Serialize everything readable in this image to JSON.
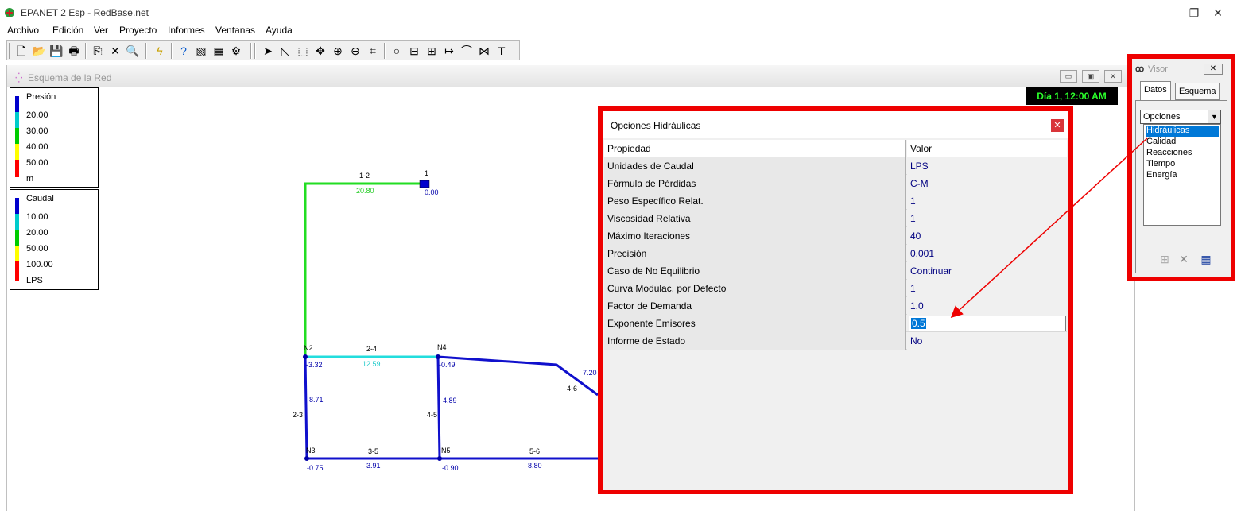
{
  "app": {
    "title": "EPANET 2 Esp - RedBase.net",
    "window_controls": {
      "minimize": "—",
      "restore": "❐",
      "close": "✕"
    }
  },
  "menu": [
    "Archivo",
    "Edición",
    "Ver",
    "Proyecto",
    "Informes",
    "Ventanas",
    "Ayuda"
  ],
  "toolbar": {
    "icons": [
      "new-file-icon",
      "open-folder-icon",
      "save-icon",
      "print-icon",
      "copy-icon",
      "delete-icon",
      "find-icon",
      "run-icon",
      "query-icon",
      "graph-icon",
      "table-icon",
      "options-icon",
      "select-arrow-icon",
      "select-vertex-icon",
      "select-region-icon",
      "pan-icon",
      "zoom-in-icon",
      "zoom-out-icon",
      "full-extent-icon",
      "add-junction-icon",
      "add-reservoir-icon",
      "add-tank-icon",
      "add-pipe-icon",
      "add-pump-icon",
      "add-valve-icon",
      "add-label-icon"
    ],
    "glyphs": [
      "🗋",
      "📂",
      "💾",
      "🖶",
      "⎘",
      "✕",
      "🔍",
      "ϟ",
      "?",
      "▧",
      "▦",
      "⚙",
      "➤",
      "◺",
      "⬚",
      "✥",
      "⊕",
      "⊖",
      "⌗",
      "○",
      "⊟",
      "⊞",
      "↦",
      "⌒",
      "⋈",
      "T"
    ]
  },
  "map_window": {
    "title": "Esquema de la Red",
    "icon": "⁛",
    "controls": {
      "minimize": "▭",
      "maximize": "▣",
      "close": "✕"
    },
    "time_display": "Día 1, 12:00 AM"
  },
  "legend_pressure": {
    "title": "Presión",
    "labels": [
      "20.00",
      "30.00",
      "40.00",
      "50.00",
      "m"
    ],
    "colors": [
      "#0000cc",
      "#00cccc",
      "#00cc00",
      "#ffff00",
      "#ff0000"
    ]
  },
  "legend_flow": {
    "title": "Caudal",
    "labels": [
      "10.00",
      "20.00",
      "50.00",
      "100.00",
      "LPS"
    ],
    "colors": [
      "#0000cc",
      "#00cccc",
      "#00cc00",
      "#ffff00",
      "#ff0000"
    ]
  },
  "network": {
    "nodes": {
      "n1": {
        "id": "1",
        "value": "0.00"
      },
      "n2": {
        "id": "N2",
        "value": "-3.32"
      },
      "n4": {
        "id": "N4",
        "value": "-0.49"
      },
      "n3": {
        "id": "N3",
        "value": "-0.75"
      },
      "n5": {
        "id": "N5",
        "value": "-0.90"
      }
    },
    "links": {
      "l12": {
        "id": "1-2",
        "value": "20.80"
      },
      "l24": {
        "id": "2-4",
        "value": "12.59"
      },
      "l23": {
        "id": "2-3",
        "value": "8.71"
      },
      "l45": {
        "id": "4-5",
        "value": "4.89"
      },
      "l46": {
        "id": "4-6",
        "value": "7.20"
      },
      "l35": {
        "id": "3-5",
        "value": "3.91"
      },
      "l56": {
        "id": "5-6",
        "value": "8.80"
      }
    }
  },
  "hydraulic_dialog": {
    "title": "Opciones Hidráulicas",
    "close": "✕",
    "header": {
      "property": "Propiedad",
      "value": "Valor"
    },
    "rows": [
      {
        "property": "Unidades de Caudal",
        "value": "LPS"
      },
      {
        "property": "Fórmula de Pérdidas",
        "value": "C-M"
      },
      {
        "property": "Peso Específico Relat.",
        "value": "1"
      },
      {
        "property": "Viscosidad Relativa",
        "value": "1"
      },
      {
        "property": "Máximo Iteraciones",
        "value": "40"
      },
      {
        "property": "Precisión",
        "value": "0.001"
      },
      {
        "property": "Caso de No Equilibrio",
        "value": "Continuar"
      },
      {
        "property": "Curva Modulac. por Defecto",
        "value": "1"
      },
      {
        "property": "Factor de Demanda",
        "value": "1.0"
      },
      {
        "property": "Exponente Emisores",
        "value": "0.5"
      },
      {
        "property": "Informe de Estado",
        "value": "No"
      }
    ]
  },
  "visor": {
    "title": "Visor",
    "icon": "ꝏ",
    "close": "✕",
    "tabs": [
      "Datos",
      "Esquema"
    ],
    "select_value": "Opciones",
    "list": [
      "Hidráulicas",
      "Calidad",
      "Reacciones",
      "Tiempo",
      "Energía"
    ],
    "selected": "Hidráulicas",
    "buttons": {
      "add": "⊞",
      "delete": "✕",
      "edit": "▦"
    }
  },
  "colors": {
    "highlight_red": "#ee0000",
    "selection_blue": "#0078d7",
    "time_green": "#2bff2b"
  }
}
